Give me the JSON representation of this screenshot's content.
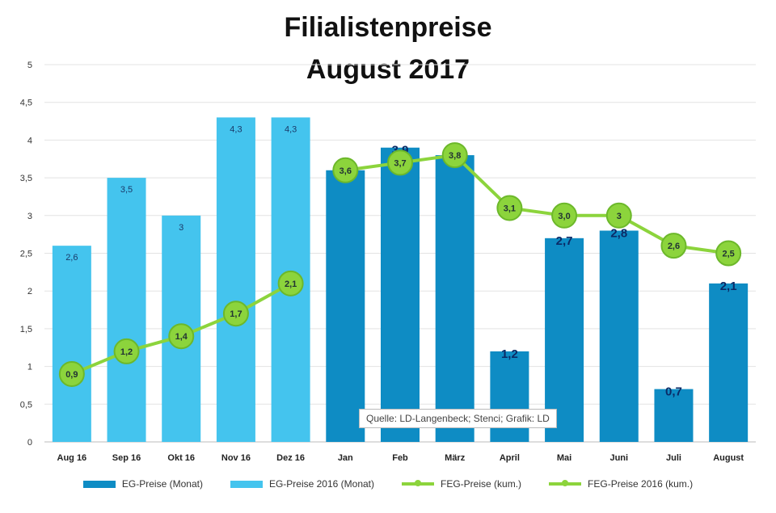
{
  "chart_data": {
    "type": "bar",
    "title_line1": "Filialistenpreise",
    "title_line2": "August 2017",
    "categories": [
      "Aug 16",
      "Sep 16",
      "Okt 16",
      "Nov 16",
      "Dez 16",
      "Jan",
      "Feb",
      "März",
      "April",
      "Mai",
      "Juni",
      "Juli",
      "August"
    ],
    "ylim": [
      0,
      5
    ],
    "yticks": [
      "0",
      "0,5",
      "1",
      "1,5",
      "2",
      "2,5",
      "3",
      "3,5",
      "4",
      "4,5",
      "5"
    ],
    "grid": true,
    "legend_position": "bottom",
    "series": [
      {
        "name": "EG-Preise (Monat)",
        "kind": "bar",
        "color": "#0e8cc4",
        "values": [
          null,
          null,
          null,
          null,
          null,
          3.6,
          3.9,
          3.8,
          1.2,
          2.7,
          2.8,
          0.7,
          2.1
        ],
        "labels": [
          "",
          "",
          "",
          "",
          "",
          "3,6",
          "3,9",
          "3,8",
          "1,2",
          "2,7",
          "2,8",
          "0,7",
          "2,1"
        ]
      },
      {
        "name": "EG-Preise 2016 (Monat)",
        "kind": "bar",
        "color": "#44c4ee",
        "values": [
          2.6,
          3.5,
          3.0,
          4.3,
          4.3,
          null,
          null,
          null,
          null,
          null,
          null,
          null,
          null
        ],
        "labels": [
          "2,6",
          "3,5",
          "3",
          "4,3",
          "4,3",
          "",
          "",
          "",
          "",
          "",
          "",
          "",
          ""
        ]
      },
      {
        "name": "FEG-Preise (kum.)",
        "kind": "line",
        "color": "#8cd43c",
        "values": [
          null,
          null,
          null,
          null,
          null,
          3.6,
          3.7,
          3.8,
          3.1,
          3.0,
          3.0,
          2.6,
          2.5
        ],
        "labels": [
          "",
          "",
          "",
          "",
          "",
          "3,6",
          "3,7",
          "3,8",
          "3,1",
          "3,0",
          "3",
          "2,6",
          "2,5"
        ]
      },
      {
        "name": "FEG-Preise 2016 (kum.)",
        "kind": "line",
        "color": "#8cd43c",
        "values": [
          0.9,
          1.2,
          1.4,
          1.7,
          2.1,
          null,
          null,
          null,
          null,
          null,
          null,
          null,
          null
        ],
        "labels": [
          "0,9",
          "1,2",
          "1,4",
          "1,7",
          "2,1",
          "",
          "",
          "",
          "",
          "",
          "",
          "",
          ""
        ]
      }
    ],
    "annotation": "Quelle: LD-Langenbeck; Stenci; Grafik: LD"
  }
}
